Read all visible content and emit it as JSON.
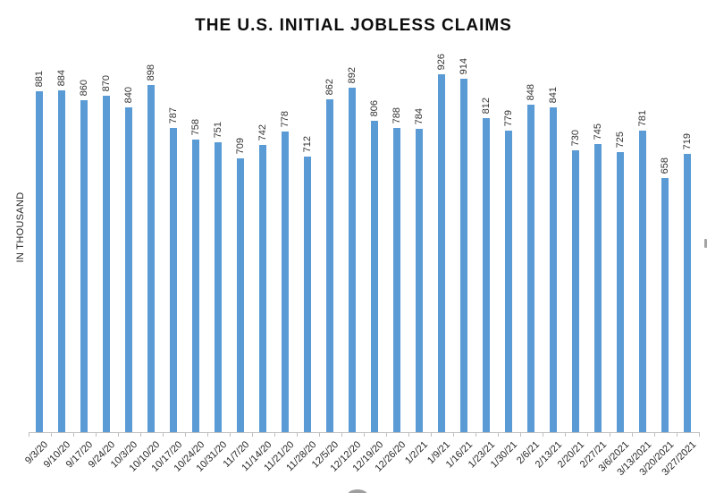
{
  "chart_data": {
    "type": "bar",
    "title": "THE U.S. INITIAL JOBLESS CLAIMS",
    "ylabel": "IN THOUSAND",
    "xlabel": "",
    "categories": [
      "9/3/20",
      "9/10/20",
      "9/17/20",
      "9/24/20",
      "10/3/20",
      "10/10/20",
      "10/17/20",
      "10/24/20",
      "10/31/20",
      "11/7/20",
      "11/14/20",
      "11/21/20",
      "11/28/20",
      "12/5/20",
      "12/12/20",
      "12/19/20",
      "12/26/20",
      "1/2/21",
      "1/9/21",
      "1/16/21",
      "1/23/21",
      "1/30/21",
      "2/6/21",
      "2/13/21",
      "2/20/21",
      "2/27/21",
      "3/6/2021",
      "3/13/2021",
      "3/20/2021",
      "3/27/2021"
    ],
    "values": [
      881,
      884,
      860,
      870,
      840,
      898,
      787,
      758,
      751,
      709,
      742,
      778,
      712,
      862,
      892,
      806,
      788,
      784,
      926,
      914,
      812,
      779,
      848,
      841,
      730,
      745,
      725,
      781,
      658,
      719
    ],
    "unit": "thousand",
    "bar_color": "#5B9BD5",
    "axis_color": "#BFBFBF",
    "data_label_color": "#333333",
    "tick_label_color": "#262626",
    "title_color": "#0D0D0D",
    "ylim": [
      0,
      926
    ],
    "grid": false,
    "legend": "none",
    "data_labels": "value above each bar, rotated 90 degrees",
    "x_tick_rotation": 45
  }
}
